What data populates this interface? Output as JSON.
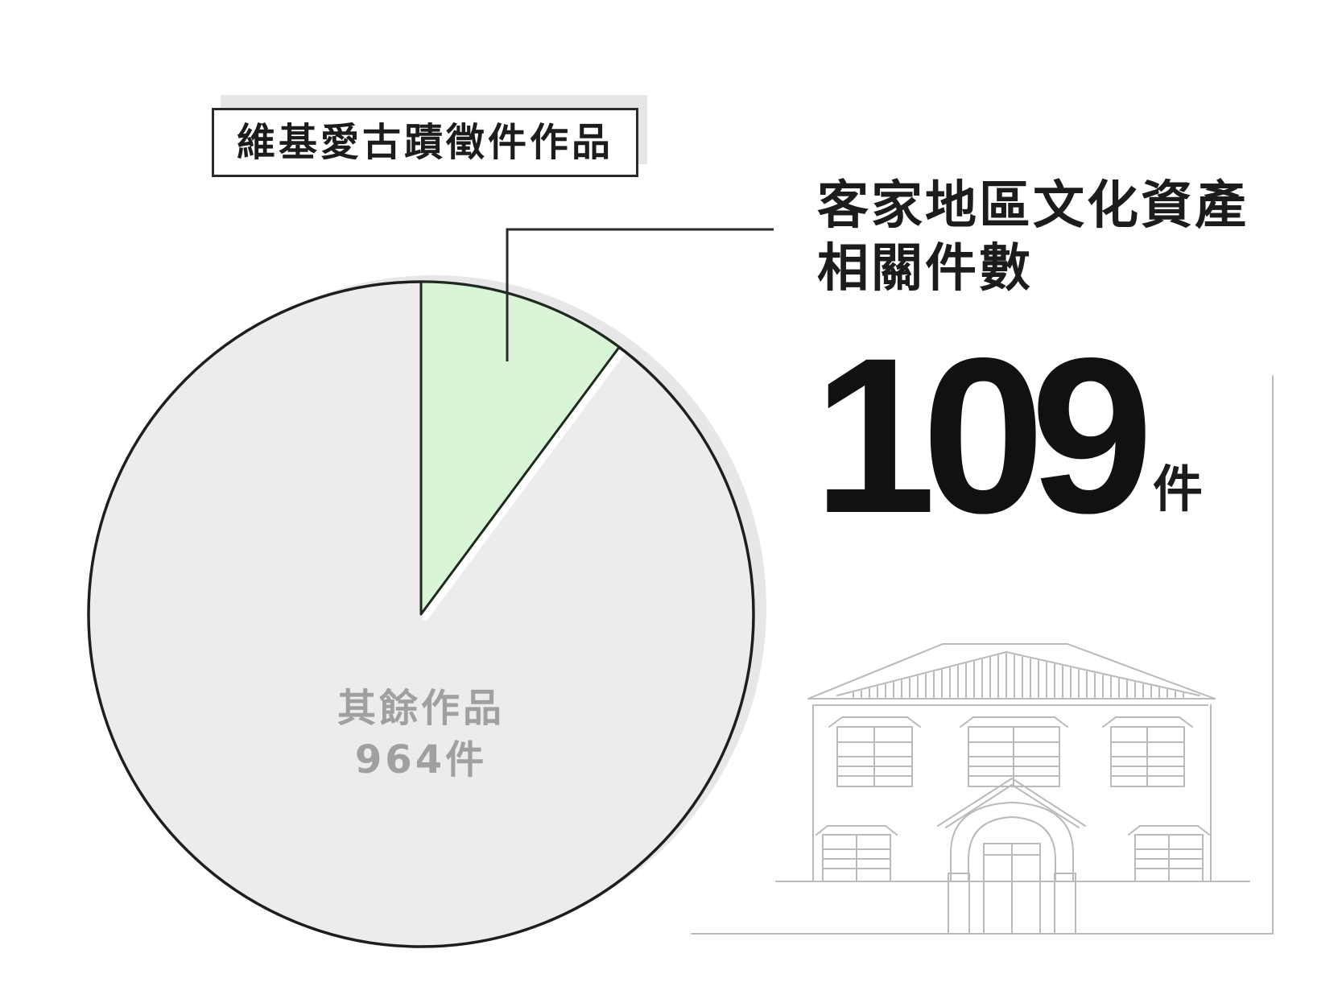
{
  "chart_data": {
    "type": "pie",
    "title": "維基愛古蹟徵件作品",
    "start": "top",
    "direction": "clockwise",
    "slices": [
      {
        "label_lines": [
          "客家地區文化資產",
          "相關件數"
        ],
        "value": 109,
        "unit": "件",
        "color": "#d8f6d6"
      },
      {
        "label_lines": [
          "其餘作品"
        ],
        "value": 964,
        "unit": "件",
        "color": "#ececec"
      }
    ]
  },
  "colors": {
    "outline": "#1e1e1e",
    "highlight_outline": "#1f2a1f",
    "shadow": "#e7e7e7",
    "label_muted": "#a0a0a0",
    "illustration": "#bababa"
  },
  "illustration_icon": "building-icon"
}
